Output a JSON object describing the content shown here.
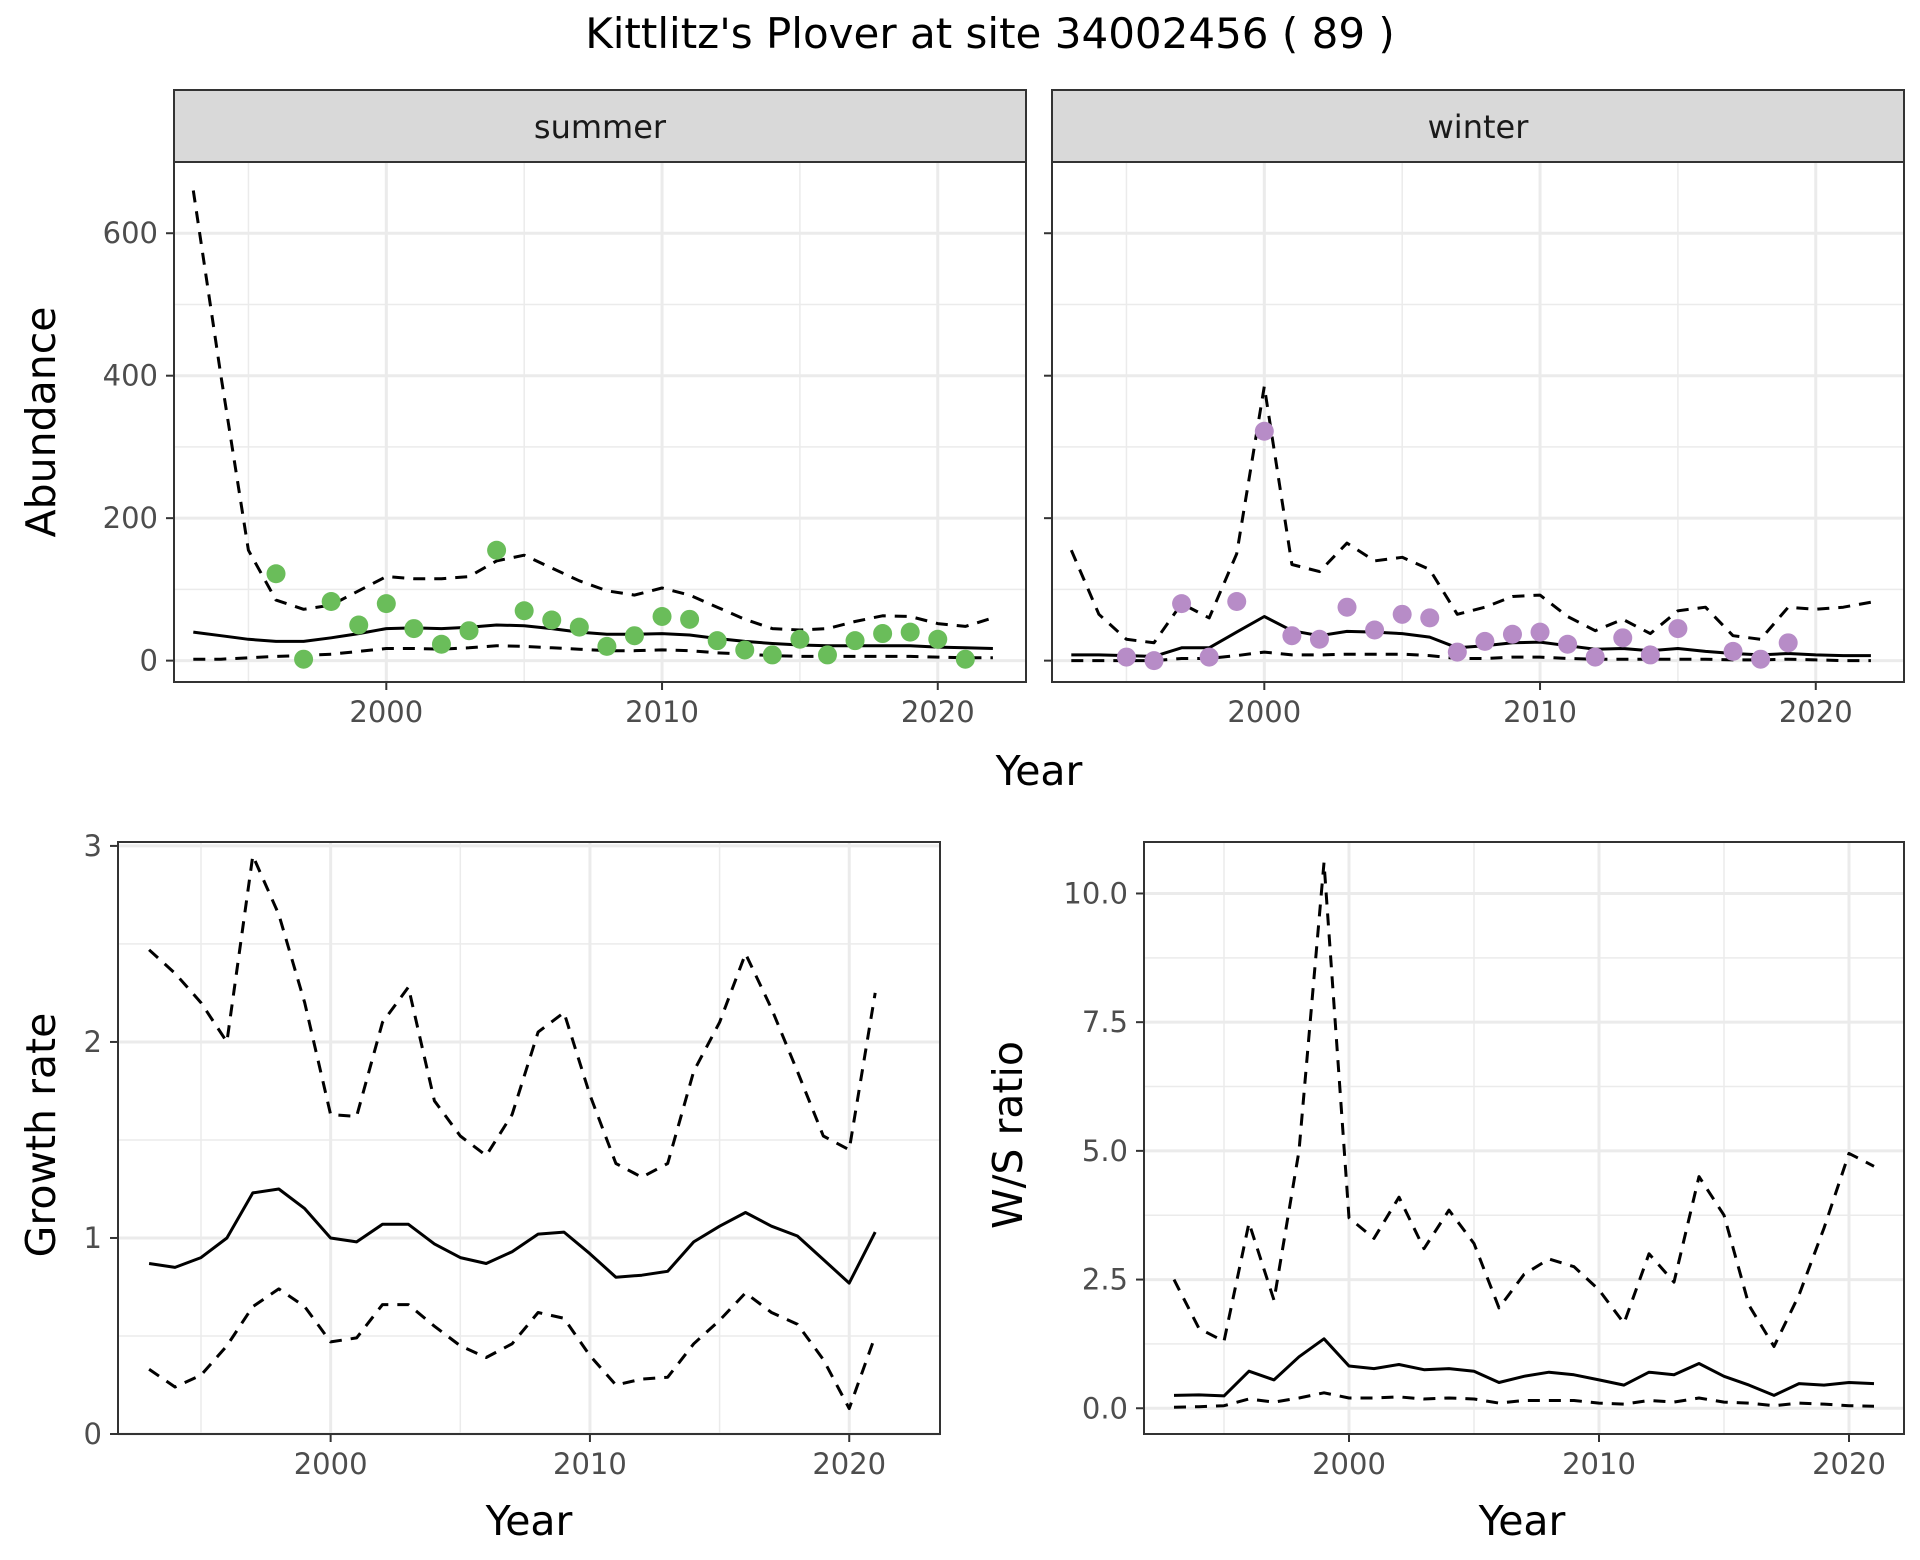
{
  "figure": {
    "title": "Kittlitz's Plover at site 34002456 ( 89 )",
    "colors": {
      "summer_points": "#6abd5a",
      "winter_points": "#b78cc7",
      "lines": "#000000",
      "grid": "#ebebeb",
      "strip_bg": "#d9d9d9"
    }
  },
  "chart_data": [
    {
      "type": "scatter",
      "panel": "summer",
      "facet_label": "summer",
      "xlabel": "Year",
      "ylabel": "Abundance",
      "xlim": [
        1992.3,
        2023.2
      ],
      "ylim": [
        -30,
        700
      ],
      "xticks": [
        2000,
        2010,
        2020
      ],
      "yticks": [
        0,
        200,
        400,
        600
      ],
      "grid": true,
      "points": {
        "x": [
          1996,
          1997,
          1998,
          1999,
          2000,
          2001,
          2002,
          2003,
          2004,
          2005,
          2006,
          2007,
          2008,
          2009,
          2010,
          2011,
          2012,
          2013,
          2014,
          2015,
          2016,
          2017,
          2018,
          2019,
          2020,
          2021
        ],
        "y": [
          122,
          2,
          83,
          50,
          80,
          45,
          23,
          42,
          155,
          70,
          57,
          47,
          20,
          35,
          62,
          58,
          28,
          15,
          8,
          30,
          8,
          28,
          38,
          40,
          30,
          2
        ]
      },
      "series": [
        {
          "name": "",
          "style": "solid",
          "x": [
            1993,
            1994,
            1995,
            1996,
            1997,
            1998,
            1999,
            2000,
            2001,
            2002,
            2003,
            2004,
            2005,
            2006,
            2007,
            2008,
            2009,
            2010,
            2011,
            2012,
            2013,
            2014,
            2015,
            2016,
            2017,
            2018,
            2019,
            2020,
            2021,
            2022
          ],
          "values": [
            40,
            35,
            30,
            27,
            27,
            32,
            38,
            45,
            46,
            45,
            47,
            50,
            49,
            45,
            40,
            37,
            37,
            38,
            36,
            31,
            27,
            24,
            22,
            21,
            21,
            21,
            21,
            19,
            18,
            17
          ]
        },
        {
          "name": "",
          "style": "dashed",
          "x": [
            1993,
            1994,
            1995,
            1996,
            1997,
            1998,
            1999,
            2000,
            2001,
            2002,
            2003,
            2004,
            2005,
            2006,
            2007,
            2008,
            2009,
            2010,
            2011,
            2012,
            2013,
            2014,
            2015,
            2016,
            2017,
            2018,
            2019,
            2020,
            2021,
            2022
          ],
          "values": [
            660,
            400,
            155,
            85,
            72,
            78,
            98,
            118,
            115,
            115,
            118,
            140,
            148,
            130,
            112,
            98,
            92,
            102,
            92,
            75,
            58,
            45,
            43,
            45,
            55,
            63,
            62,
            52,
            48,
            60
          ]
        },
        {
          "name": "",
          "style": "dashed",
          "x": [
            1993,
            1994,
            1995,
            1996,
            1997,
            1998,
            1999,
            2000,
            2001,
            2002,
            2003,
            2004,
            2005,
            2006,
            2007,
            2008,
            2009,
            2010,
            2011,
            2012,
            2013,
            2014,
            2015,
            2016,
            2017,
            2018,
            2019,
            2020,
            2021,
            2022
          ],
          "values": [
            2,
            2,
            4,
            6,
            7,
            9,
            13,
            17,
            17,
            16,
            18,
            21,
            20,
            18,
            16,
            14,
            14,
            15,
            14,
            11,
            9,
            7,
            6,
            6,
            6,
            6,
            6,
            5,
            4,
            4
          ]
        }
      ]
    },
    {
      "type": "scatter",
      "panel": "winter",
      "facet_label": "winter",
      "xlabel": "Year",
      "ylabel": "Abundance",
      "xlim": [
        1992.3,
        2023.2
      ],
      "ylim": [
        -30,
        700
      ],
      "xticks": [
        2000,
        2010,
        2020
      ],
      "yticks": [
        0,
        200,
        400,
        600
      ],
      "grid": true,
      "points": {
        "x": [
          1995,
          1996,
          1997,
          1998,
          1999,
          2000,
          2001,
          2002,
          2003,
          2004,
          2005,
          2006,
          2007,
          2008,
          2009,
          2010,
          2011,
          2012,
          2013,
          2014,
          2015,
          2017,
          2018,
          2019
        ],
        "y": [
          5,
          0,
          80,
          5,
          83,
          322,
          35,
          30,
          75,
          43,
          65,
          60,
          12,
          27,
          37,
          40,
          23,
          5,
          32,
          8,
          45,
          13,
          2,
          25
        ]
      },
      "series": [
        {
          "name": "",
          "style": "solid",
          "x": [
            1993,
            1994,
            1995,
            1996,
            1997,
            1998,
            1999,
            2000,
            2001,
            2002,
            2003,
            2004,
            2005,
            2006,
            2007,
            2008,
            2009,
            2010,
            2011,
            2012,
            2013,
            2014,
            2015,
            2016,
            2017,
            2018,
            2019,
            2020,
            2021,
            2022
          ],
          "values": [
            8,
            8,
            7,
            6,
            18,
            18,
            40,
            62,
            42,
            35,
            41,
            40,
            38,
            33,
            18,
            21,
            25,
            26,
            21,
            16,
            17,
            14,
            17,
            13,
            10,
            8,
            10,
            8,
            7,
            7
          ]
        },
        {
          "name": "",
          "style": "dashed",
          "x": [
            1993,
            1994,
            1995,
            1996,
            1997,
            1998,
            1999,
            2000,
            2001,
            2002,
            2003,
            2004,
            2005,
            2006,
            2007,
            2008,
            2009,
            2010,
            2011,
            2012,
            2013,
            2014,
            2015,
            2016,
            2017,
            2018,
            2019,
            2020,
            2021,
            2022
          ],
          "values": [
            155,
            65,
            30,
            25,
            80,
            60,
            150,
            385,
            135,
            125,
            165,
            140,
            145,
            128,
            65,
            75,
            90,
            92,
            62,
            42,
            58,
            38,
            70,
            75,
            35,
            30,
            75,
            72,
            75,
            82
          ]
        },
        {
          "name": "",
          "style": "dashed",
          "x": [
            1993,
            1994,
            1995,
            1996,
            1997,
            1998,
            1999,
            2000,
            2001,
            2002,
            2003,
            2004,
            2005,
            2006,
            2007,
            2008,
            2009,
            2010,
            2011,
            2012,
            2013,
            2014,
            2015,
            2016,
            2017,
            2018,
            2019,
            2020,
            2021,
            2022
          ],
          "values": [
            0,
            0,
            0,
            0,
            3,
            3,
            7,
            12,
            8,
            8,
            9,
            9,
            9,
            7,
            3,
            3,
            5,
            5,
            3,
            2,
            2,
            2,
            2,
            2,
            1,
            1,
            2,
            1,
            0,
            0
          ]
        }
      ]
    },
    {
      "type": "line",
      "panel": "growth",
      "xlabel": "Year",
      "ylabel": "Growth rate",
      "xlim": [
        1991.8,
        2023.5
      ],
      "ylim": [
        0,
        3.02
      ],
      "xticks": [
        2000,
        2010,
        2020
      ],
      "yticks": [
        0,
        1,
        2,
        3
      ],
      "grid": true,
      "series": [
        {
          "name": "",
          "style": "solid",
          "x": [
            1993,
            1994,
            1995,
            1996,
            1997,
            1998,
            1999,
            2000,
            2001,
            2002,
            2003,
            2004,
            2005,
            2006,
            2007,
            2008,
            2009,
            2010,
            2011,
            2012,
            2013,
            2014,
            2015,
            2016,
            2017,
            2018,
            2019,
            2020,
            2021
          ],
          "values": [
            0.87,
            0.85,
            0.9,
            1.0,
            1.23,
            1.25,
            1.15,
            1.0,
            0.98,
            1.07,
            1.07,
            0.97,
            0.9,
            0.87,
            0.93,
            1.02,
            1.03,
            0.92,
            0.8,
            0.81,
            0.83,
            0.98,
            1.06,
            1.13,
            1.06,
            1.01,
            0.89,
            0.77,
            1.03
          ]
        },
        {
          "name": "",
          "style": "dashed",
          "x": [
            1993,
            1994,
            1995,
            1996,
            1997,
            1998,
            1999,
            2000,
            2001,
            2002,
            2003,
            2004,
            2005,
            2006,
            2007,
            2008,
            2009,
            2010,
            2011,
            2012,
            2013,
            2014,
            2015,
            2016,
            2017,
            2018,
            2019,
            2020,
            2021
          ],
          "values": [
            2.47,
            2.35,
            2.2,
            2.0,
            2.95,
            2.65,
            2.2,
            1.63,
            1.62,
            2.1,
            2.28,
            1.7,
            1.52,
            1.42,
            1.63,
            2.05,
            2.15,
            1.73,
            1.38,
            1.31,
            1.38,
            1.85,
            2.1,
            2.45,
            2.17,
            1.85,
            1.52,
            1.45,
            2.25
          ]
        },
        {
          "name": "",
          "style": "dashed",
          "x": [
            1993,
            1994,
            1995,
            1996,
            1997,
            1998,
            1999,
            2000,
            2001,
            2002,
            2003,
            2004,
            2005,
            2006,
            2007,
            2008,
            2009,
            2010,
            2011,
            2012,
            2013,
            2014,
            2015,
            2016,
            2017,
            2018,
            2019,
            2020,
            2021
          ],
          "values": [
            0.33,
            0.24,
            0.3,
            0.45,
            0.65,
            0.74,
            0.65,
            0.47,
            0.49,
            0.66,
            0.66,
            0.55,
            0.45,
            0.39,
            0.46,
            0.62,
            0.59,
            0.4,
            0.25,
            0.28,
            0.29,
            0.46,
            0.58,
            0.72,
            0.62,
            0.56,
            0.38,
            0.13,
            0.5
          ]
        }
      ]
    },
    {
      "type": "line",
      "panel": "ws_ratio",
      "xlabel": "Year",
      "ylabel": "W/S ratio",
      "xlim": [
        1991.8,
        2022.2
      ],
      "ylim": [
        -0.5,
        11.0
      ],
      "xticks": [
        2000,
        2010,
        2020
      ],
      "yticks": [
        0.0,
        2.5,
        5.0,
        7.5,
        10.0
      ],
      "ytick_labels": [
        "0.0",
        "2.5",
        "5.0",
        "7.5",
        "10.0"
      ],
      "grid": true,
      "series": [
        {
          "name": "",
          "style": "solid",
          "x": [
            1993,
            1994,
            1995,
            1996,
            1997,
            1998,
            1999,
            2000,
            2001,
            2002,
            2003,
            2004,
            2005,
            2006,
            2007,
            2008,
            2009,
            2010,
            2011,
            2012,
            2013,
            2014,
            2015,
            2016,
            2017,
            2018,
            2019,
            2020,
            2021
          ],
          "values": [
            0.25,
            0.26,
            0.24,
            0.72,
            0.55,
            1.0,
            1.35,
            0.82,
            0.77,
            0.85,
            0.75,
            0.77,
            0.72,
            0.5,
            0.62,
            0.7,
            0.65,
            0.55,
            0.45,
            0.7,
            0.65,
            0.87,
            0.62,
            0.45,
            0.25,
            0.48,
            0.45,
            0.5,
            0.48
          ]
        },
        {
          "name": "",
          "style": "dashed",
          "x": [
            1993,
            1994,
            1995,
            1996,
            1997,
            1998,
            1999,
            2000,
            2001,
            2002,
            2003,
            2004,
            2005,
            2006,
            2007,
            2008,
            2009,
            2010,
            2011,
            2012,
            2013,
            2014,
            2015,
            2016,
            2017,
            2018,
            2019,
            2020,
            2021
          ],
          "values": [
            2.5,
            1.55,
            1.3,
            3.6,
            2.1,
            5.0,
            10.6,
            3.7,
            3.3,
            4.1,
            3.1,
            3.85,
            3.2,
            1.95,
            2.6,
            2.9,
            2.75,
            2.3,
            1.65,
            3.0,
            2.45,
            4.5,
            3.75,
            2.0,
            1.2,
            2.2,
            3.5,
            4.95,
            4.7
          ]
        },
        {
          "name": "",
          "style": "dashed",
          "x": [
            1993,
            1994,
            1995,
            1996,
            1997,
            1998,
            1999,
            2000,
            2001,
            2002,
            2003,
            2004,
            2005,
            2006,
            2007,
            2008,
            2009,
            2010,
            2011,
            2012,
            2013,
            2014,
            2015,
            2016,
            2017,
            2018,
            2019,
            2020,
            2021
          ],
          "values": [
            0.02,
            0.03,
            0.05,
            0.18,
            0.12,
            0.2,
            0.3,
            0.2,
            0.2,
            0.22,
            0.18,
            0.2,
            0.18,
            0.1,
            0.15,
            0.15,
            0.15,
            0.1,
            0.08,
            0.15,
            0.12,
            0.2,
            0.12,
            0.1,
            0.05,
            0.1,
            0.08,
            0.05,
            0.04
          ]
        }
      ]
    }
  ]
}
